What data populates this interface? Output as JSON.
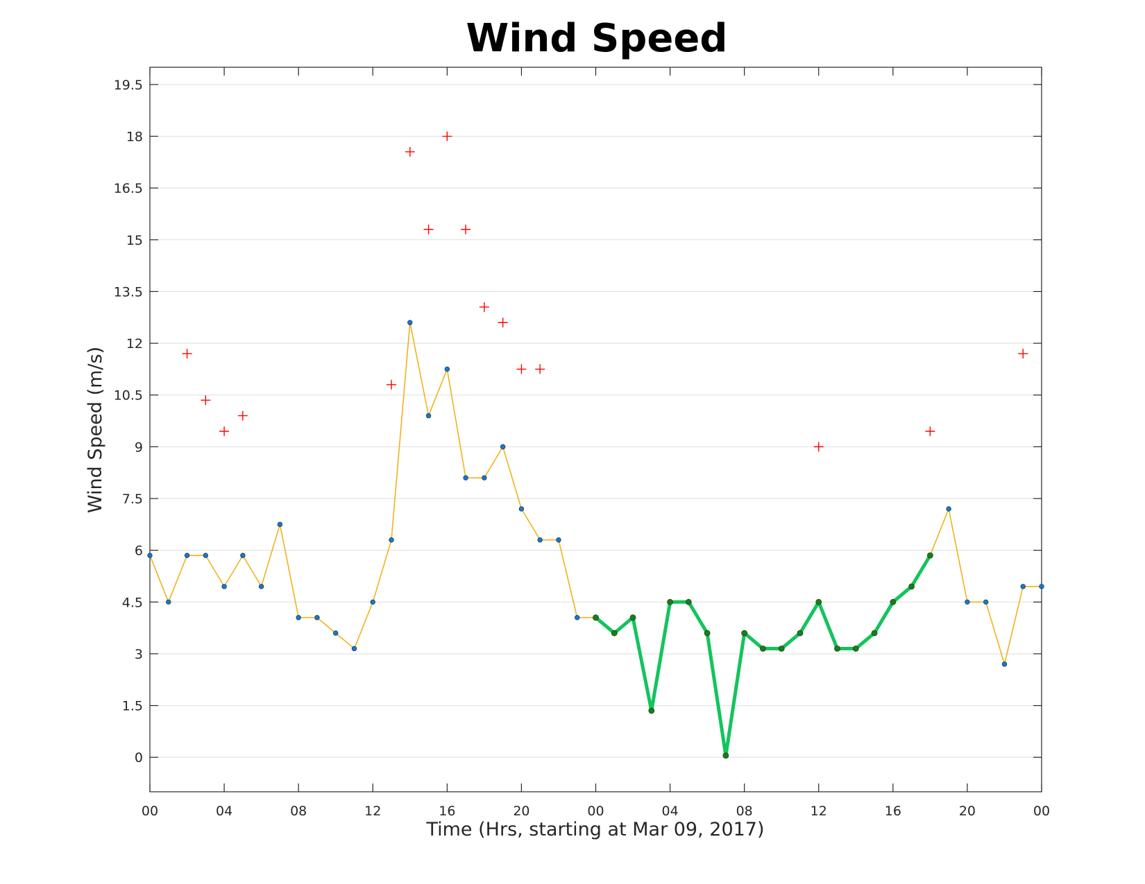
{
  "chart_data": {
    "type": "line",
    "title": "Wind Speed",
    "xlabel": "Time (Hrs, starting at Mar 09, 2017)",
    "ylabel": "Wind Speed (m/s)",
    "ylim": [
      -1,
      20
    ],
    "ytick_values": [
      0,
      1.5,
      3,
      4.5,
      6,
      7.5,
      9,
      10.5,
      12,
      13.5,
      15,
      16.5,
      18,
      19.5
    ],
    "yticks": [
      "0",
      "1.5",
      "3",
      "4.5",
      "6",
      "7.5",
      "9",
      "10.5",
      "12",
      "13.5",
      "15",
      "16.5",
      "18",
      "19.5"
    ],
    "xlim": [
      0,
      48
    ],
    "xtick_values": [
      0,
      4,
      8,
      12,
      16,
      20,
      24,
      28,
      32,
      36,
      40,
      44,
      48
    ],
    "xticks": [
      "00",
      "04",
      "08",
      "12",
      "16",
      "20",
      "00",
      "04",
      "08",
      "12",
      "16",
      "20",
      "00"
    ],
    "grid": true,
    "colors": {
      "wind_line": "#f0b21c",
      "wind_marker": "#1f77c0",
      "highlight_line": "#13c45d",
      "highlight_marker": "#1f7a1f",
      "gust_marker": "#ff0000"
    },
    "series": [
      {
        "role": "wind",
        "x": [
          0,
          1,
          2,
          3,
          4,
          5,
          6,
          7,
          8,
          9,
          10,
          11,
          12,
          13,
          14,
          15,
          16,
          17,
          18,
          19,
          20,
          21,
          22,
          23,
          24,
          25,
          26,
          27,
          28,
          29,
          30,
          31,
          32,
          33,
          34,
          35,
          36,
          37,
          38,
          39,
          40,
          41,
          42,
          43,
          44,
          45,
          46,
          47,
          48
        ],
        "values": [
          5.85,
          4.5,
          5.85,
          5.85,
          4.95,
          5.85,
          4.95,
          6.75,
          4.05,
          4.05,
          3.6,
          3.15,
          4.5,
          6.3,
          12.6,
          9.9,
          11.25,
          8.1,
          8.1,
          9.0,
          7.2,
          6.3,
          6.3,
          4.05,
          4.05,
          3.6,
          4.05,
          1.35,
          4.5,
          4.5,
          3.6,
          0.05,
          3.6,
          3.15,
          3.15,
          3.6,
          4.5,
          3.15,
          3.15,
          3.6,
          4.5,
          4.95,
          5.85,
          7.2,
          4.5,
          4.5,
          2.7,
          4.95,
          4.95
        ]
      },
      {
        "role": "highlight",
        "x": [
          24,
          25,
          26,
          27,
          28,
          29,
          30,
          31,
          32,
          33,
          34,
          35,
          36,
          37,
          38,
          39,
          40,
          41,
          42
        ],
        "values": [
          4.05,
          3.6,
          4.05,
          1.35,
          4.5,
          4.5,
          3.6,
          0.05,
          3.6,
          3.15,
          3.15,
          3.6,
          4.5,
          3.15,
          3.15,
          3.6,
          4.5,
          4.95,
          5.85
        ]
      },
      {
        "role": "gust",
        "x": [
          2,
          3,
          4,
          5,
          13,
          14,
          15,
          16,
          17,
          18,
          19,
          20,
          21,
          36,
          42,
          47
        ],
        "values": [
          11.7,
          10.35,
          9.45,
          9.9,
          10.8,
          17.55,
          15.3,
          18.0,
          15.3,
          13.05,
          12.6,
          11.25,
          11.25,
          9.0,
          9.45,
          11.7
        ]
      }
    ]
  }
}
